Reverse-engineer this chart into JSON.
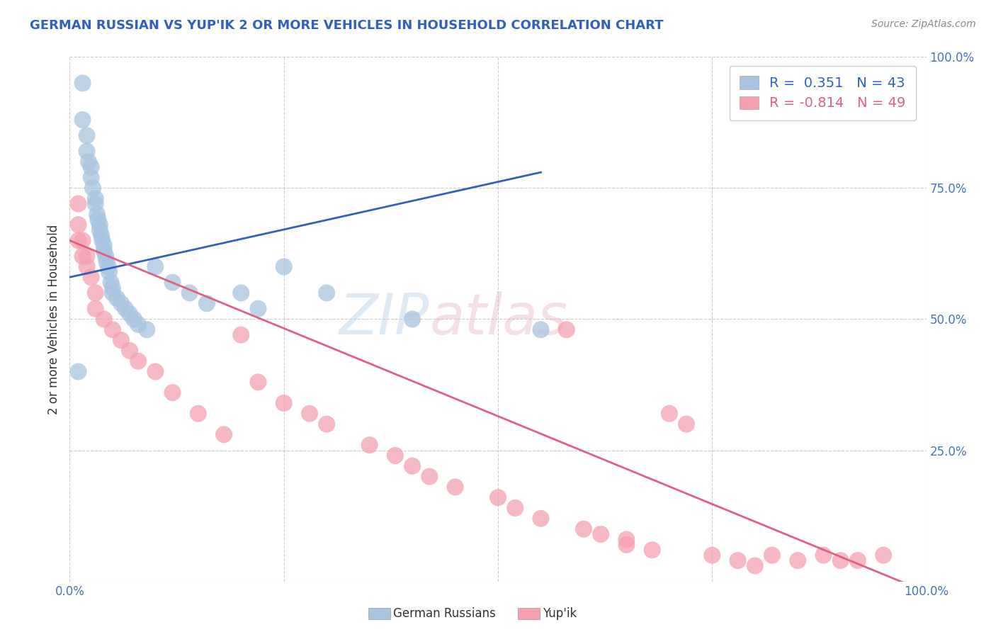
{
  "title": "GERMAN RUSSIAN VS YUP'IK 2 OR MORE VEHICLES IN HOUSEHOLD CORRELATION CHART",
  "source": "Source: ZipAtlas.com",
  "ylabel": "2 or more Vehicles in Household",
  "xlim": [
    0.0,
    1.0
  ],
  "ylim": [
    0.0,
    1.0
  ],
  "xtick_labels": [
    "0.0%",
    "",
    "",
    "",
    "100.0%"
  ],
  "xtick_vals": [
    0.0,
    0.25,
    0.5,
    0.75,
    1.0
  ],
  "ytick_labels": [
    "100.0%",
    "75.0%",
    "50.0%",
    "25.0%",
    ""
  ],
  "ytick_vals": [
    1.0,
    0.75,
    0.5,
    0.25,
    0.0
  ],
  "legend_labels": [
    "German Russians",
    "Yup'ik"
  ],
  "german_russian_color": "#a8c4e0",
  "yupik_color": "#f4a0b0",
  "german_russian_line_color": "#3060c0",
  "yupik_line_color": "#e06080",
  "R_german": 0.351,
  "N_german": 43,
  "R_yupik": -0.814,
  "N_yupik": 49,
  "background_color": "#ffffff",
  "grid_color": "#cccccc",
  "german_russian_x": [
    0.01,
    0.015,
    0.015,
    0.02,
    0.02,
    0.022,
    0.025,
    0.025,
    0.027,
    0.03,
    0.03,
    0.032,
    0.033,
    0.035,
    0.035,
    0.037,
    0.038,
    0.04,
    0.04,
    0.042,
    0.043,
    0.045,
    0.046,
    0.048,
    0.05,
    0.05,
    0.055,
    0.06,
    0.065,
    0.07,
    0.075,
    0.08,
    0.09,
    0.1,
    0.12,
    0.14,
    0.16,
    0.2,
    0.22,
    0.25,
    0.3,
    0.4,
    0.55
  ],
  "german_russian_y": [
    0.4,
    0.95,
    0.88,
    0.85,
    0.82,
    0.8,
    0.79,
    0.77,
    0.75,
    0.73,
    0.72,
    0.7,
    0.69,
    0.68,
    0.67,
    0.66,
    0.65,
    0.64,
    0.63,
    0.62,
    0.61,
    0.6,
    0.59,
    0.57,
    0.56,
    0.55,
    0.54,
    0.53,
    0.52,
    0.51,
    0.5,
    0.49,
    0.48,
    0.6,
    0.57,
    0.55,
    0.53,
    0.55,
    0.52,
    0.6,
    0.55,
    0.5,
    0.48
  ],
  "yupik_x": [
    0.01,
    0.01,
    0.01,
    0.015,
    0.015,
    0.02,
    0.02,
    0.025,
    0.03,
    0.03,
    0.04,
    0.05,
    0.06,
    0.07,
    0.08,
    0.1,
    0.12,
    0.15,
    0.18,
    0.2,
    0.22,
    0.25,
    0.28,
    0.3,
    0.35,
    0.38,
    0.4,
    0.42,
    0.45,
    0.5,
    0.52,
    0.55,
    0.58,
    0.6,
    0.62,
    0.65,
    0.65,
    0.68,
    0.7,
    0.72,
    0.75,
    0.78,
    0.8,
    0.82,
    0.85,
    0.88,
    0.9,
    0.92,
    0.95
  ],
  "yupik_y": [
    0.72,
    0.68,
    0.65,
    0.65,
    0.62,
    0.62,
    0.6,
    0.58,
    0.55,
    0.52,
    0.5,
    0.48,
    0.46,
    0.44,
    0.42,
    0.4,
    0.36,
    0.32,
    0.28,
    0.47,
    0.38,
    0.34,
    0.32,
    0.3,
    0.26,
    0.24,
    0.22,
    0.2,
    0.18,
    0.16,
    0.14,
    0.12,
    0.48,
    0.1,
    0.09,
    0.08,
    0.07,
    0.06,
    0.32,
    0.3,
    0.05,
    0.04,
    0.03,
    0.05,
    0.04,
    0.05,
    0.04,
    0.04,
    0.05
  ],
  "gr_line_x0": 0.0,
  "gr_line_x1": 0.55,
  "gr_line_y0": 0.58,
  "gr_line_y1": 0.78,
  "yp_line_x0": 0.0,
  "yp_line_x1": 1.0,
  "yp_line_y0": 0.65,
  "yp_line_y1": -0.02
}
